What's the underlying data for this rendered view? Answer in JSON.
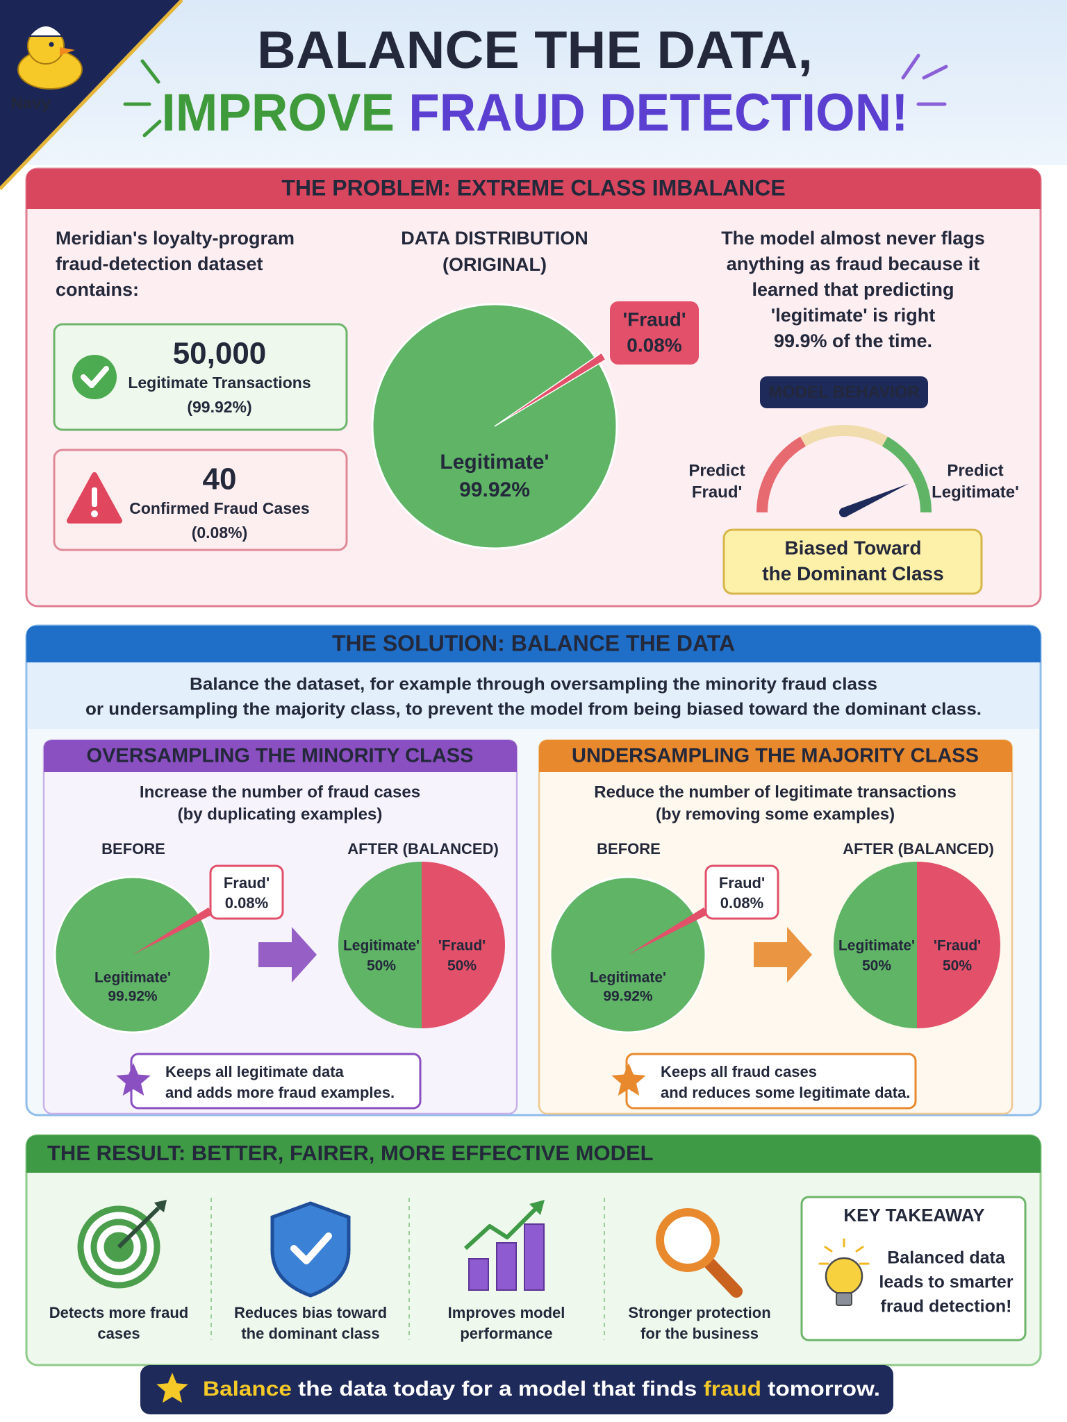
{
  "header": {
    "logo": "Navy",
    "title_line1": "BALANCE THE DATA,",
    "title_line2a": "IMPROVE ",
    "title_line2b": "FRAUD DETECTION!"
  },
  "problem": {
    "heading": "THE PROBLEM: EXTREME CLASS IMBALANCE",
    "intro": [
      "Meridian's loyalty-program",
      "fraud-detection dataset",
      "contains:"
    ],
    "stats": [
      {
        "value": "50,000",
        "label": "Legitimate Transactions",
        "pct": "(99.92%)"
      },
      {
        "value": "40",
        "label": "Confirmed Fraud Cases",
        "pct": "(0.08%)"
      }
    ],
    "chart_title": [
      "DATA DISTRIBUTION",
      "(ORIGINAL)"
    ],
    "fraud_label": [
      "'Fraud'",
      "0.08%"
    ],
    "legit_label": [
      "Legitimate'",
      "99.92%"
    ],
    "explanation": [
      "The model almost never flags",
      "anything as fraud because it",
      "learned that predicting",
      "'legitimate' is right",
      "99.9% of the time."
    ],
    "gauge": {
      "title": "MODEL BEHAVIOR",
      "left": [
        "Predict",
        "Fraud'"
      ],
      "right": [
        "Predict",
        "Legitimate'"
      ],
      "verdict": [
        "Biased Toward",
        "the Dominant Class"
      ]
    }
  },
  "solution": {
    "heading": "THE SOLUTION: BALANCE THE DATA",
    "description": [
      "Balance the dataset, for example through oversampling the minority fraud class",
      "or undersampling the majority class, to prevent the model from being biased toward the dominant class."
    ],
    "methods": [
      {
        "heading": "OVERSAMPLING THE MINORITY CLASS",
        "description": [
          "Increase the number of fraud cases",
          "(by duplicating examples)"
        ],
        "before": "BEFORE",
        "after": "AFTER (BALANCED)",
        "before_fraud": [
          "Fraud'",
          "0.08%"
        ],
        "before_legit": [
          "Legitimate'",
          "99.92%"
        ],
        "after_legit": [
          "Legitimate'",
          "50%"
        ],
        "after_fraud": [
          "'Fraud'",
          "50%"
        ],
        "note": [
          "Keeps all legitimate data",
          "and adds more fraud examples."
        ]
      },
      {
        "heading": "UNDERSAMPLING THE MAJORITY CLASS",
        "description": [
          "Reduce the number of legitimate transactions",
          "(by removing some examples)"
        ],
        "before": "BEFORE",
        "after": "AFTER (BALANCED)",
        "before_fraud": [
          "Fraud'",
          "0.08%"
        ],
        "before_legit": [
          "Legitimate'",
          "99.92%"
        ],
        "after_legit": [
          "Legitimate'",
          "50%"
        ],
        "after_fraud": [
          "'Fraud'",
          "50%"
        ],
        "note": [
          "Keeps all fraud cases",
          "and reduces some legitimate data."
        ]
      }
    ]
  },
  "result": {
    "heading": "THE RESULT: BETTER, FAIRER, MORE EFFECTIVE MODEL",
    "benefits": [
      [
        "Detects more fraud",
        "cases"
      ],
      [
        "Reduces bias toward",
        "the dominant class"
      ],
      [
        "Improves model",
        "performance"
      ],
      [
        "Stronger protection",
        "for the business"
      ]
    ],
    "takeaway": {
      "title": "KEY TAKEAWAY",
      "text": [
        "Balanced data",
        "leads to smarter",
        "fraud detection!"
      ]
    }
  },
  "footer": [
    "Balance",
    " the data today for a model that finds ",
    "fraud",
    " tomorrow."
  ]
}
